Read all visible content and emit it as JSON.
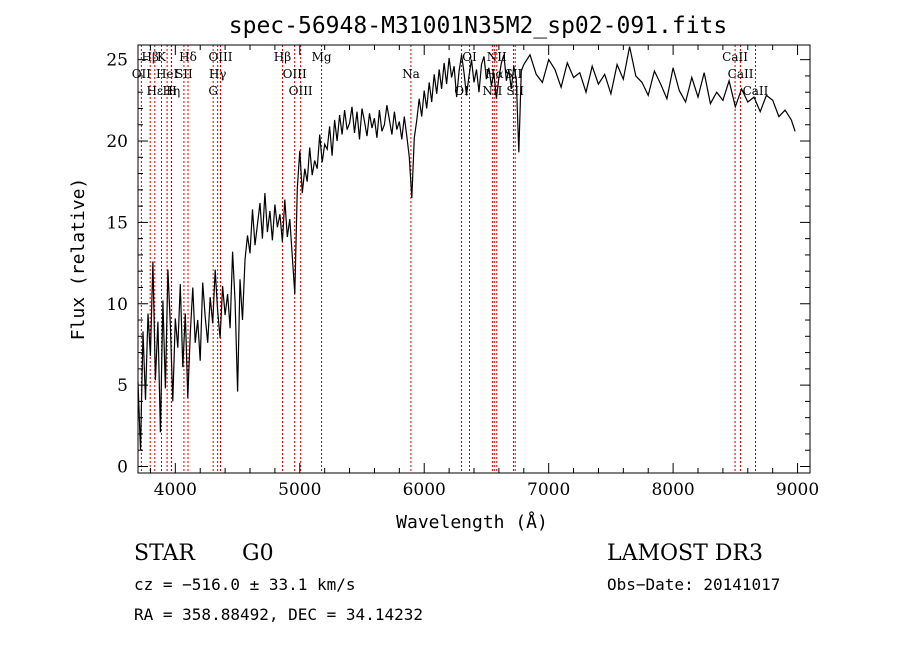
{
  "chart_data": {
    "type": "line",
    "title": "spec-56948-M31001N35M2_sp02-091.fits",
    "xlabel": "Wavelength (Å)",
    "ylabel": "Flux (relative)",
    "xlim": [
      3700,
      9100
    ],
    "ylim": [
      -0.4,
      25.9
    ],
    "xticks": [
      4000,
      5000,
      6000,
      7000,
      8000,
      9000
    ],
    "yticks": [
      0,
      5,
      10,
      15,
      20,
      25
    ],
    "grid": false,
    "legend": "none",
    "series": [
      {
        "color": "#000000",
        "x": [
          3700,
          3720,
          3740,
          3760,
          3780,
          3800,
          3820,
          3840,
          3860,
          3880,
          3900,
          3920,
          3940,
          3960,
          3980,
          4000,
          4020,
          4040,
          4060,
          4080,
          4100,
          4120,
          4140,
          4160,
          4180,
          4200,
          4220,
          4240,
          4260,
          4280,
          4300,
          4320,
          4340,
          4360,
          4380,
          4400,
          4420,
          4440,
          4460,
          4480,
          4500,
          4520,
          4540,
          4560,
          4580,
          4600,
          4620,
          4640,
          4660,
          4680,
          4700,
          4720,
          4740,
          4760,
          4780,
          4800,
          4820,
          4840,
          4860,
          4880,
          4900,
          4920,
          4940,
          4960,
          4980,
          5000,
          5020,
          5040,
          5060,
          5080,
          5100,
          5120,
          5140,
          5160,
          5180,
          5200,
          5220,
          5240,
          5260,
          5280,
          5300,
          5320,
          5340,
          5360,
          5380,
          5400,
          5420,
          5440,
          5460,
          5480,
          5500,
          5520,
          5540,
          5560,
          5580,
          5600,
          5620,
          5640,
          5660,
          5680,
          5700,
          5720,
          5740,
          5760,
          5780,
          5800,
          5820,
          5840,
          5860,
          5880,
          5900,
          5920,
          5940,
          5960,
          5980,
          6000,
          6020,
          6040,
          6060,
          6080,
          6100,
          6120,
          6140,
          6160,
          6180,
          6200,
          6220,
          6240,
          6260,
          6280,
          6300,
          6320,
          6340,
          6360,
          6380,
          6400,
          6420,
          6440,
          6460,
          6480,
          6500,
          6520,
          6540,
          6560,
          6580,
          6600,
          6620,
          6640,
          6660,
          6680,
          6700,
          6720,
          6740,
          6760,
          6780,
          6800,
          6850,
          6900,
          6950,
          7000,
          7050,
          7100,
          7150,
          7200,
          7250,
          7300,
          7350,
          7400,
          7450,
          7500,
          7550,
          7600,
          7650,
          7700,
          7750,
          7800,
          7850,
          7900,
          7950,
          8000,
          8050,
          8100,
          8150,
          8200,
          8250,
          8300,
          8350,
          8400,
          8450,
          8500,
          8550,
          8600,
          8650,
          8700,
          8750,
          8800,
          8850,
          8900,
          8950,
          8980
        ],
        "y": [
          5.2,
          1.0,
          8.3,
          4.1,
          9.4,
          6.8,
          12.6,
          5.3,
          8.9,
          2.1,
          10.2,
          4.8,
          12.1,
          8.6,
          4.0,
          9.1,
          7.3,
          11.2,
          6.1,
          9.4,
          4.2,
          8.2,
          11.0,
          7.6,
          9.0,
          6.5,
          11.3,
          9.2,
          7.6,
          10.4,
          8.8,
          12.1,
          9.6,
          7.9,
          11.1,
          9.3,
          10.6,
          8.5,
          13.2,
          10.1,
          4.6,
          11.5,
          9.0,
          12.7,
          14.2,
          13.1,
          15.8,
          13.6,
          14.9,
          16.2,
          14.0,
          16.8,
          14.4,
          15.7,
          13.9,
          16.1,
          14.7,
          15.5,
          13.8,
          16.4,
          14.1,
          15.2,
          12.9,
          10.6,
          17.1,
          19.4,
          16.8,
          18.3,
          17.5,
          19.6,
          17.9,
          18.8,
          18.3,
          20.4,
          18.7,
          19.8,
          19.5,
          20.9,
          19.1,
          21.3,
          20.0,
          21.6,
          20.4,
          21.9,
          20.7,
          21.1,
          22.1,
          20.5,
          21.8,
          20.1,
          22.0,
          21.2,
          20.3,
          21.7,
          20.8,
          21.4,
          20.2,
          21.9,
          20.6,
          21.0,
          22.2,
          21.3,
          20.4,
          21.8,
          20.7,
          21.2,
          20.1,
          21.5,
          20.3,
          19.0,
          16.5,
          20.2,
          21.3,
          22.6,
          21.5,
          23.1,
          22.0,
          23.6,
          22.4,
          24.1,
          22.9,
          24.4,
          23.2,
          24.8,
          23.5,
          25.1,
          23.9,
          24.6,
          22.7,
          24.3,
          25.3,
          24.2,
          22.8,
          24.0,
          25.0,
          23.6,
          24.4,
          23.0,
          24.7,
          25.2,
          23.8,
          24.5,
          23.4,
          24.2,
          22.6,
          23.9,
          24.8,
          25.3,
          23.7,
          24.4,
          23.2,
          24.6,
          23.8,
          19.3,
          24.3,
          24.7,
          25.3,
          24.1,
          23.6,
          25.0,
          24.4,
          23.3,
          24.8,
          23.9,
          24.2,
          23.0,
          24.6,
          23.5,
          24.1,
          22.9,
          24.7,
          23.8,
          25.8,
          24.0,
          23.6,
          22.8,
          24.3,
          23.5,
          22.6,
          24.5,
          23.1,
          22.4,
          23.9,
          22.7,
          24.2,
          22.3,
          23.0,
          22.5,
          23.7,
          22.1,
          23.2,
          22.4,
          22.7,
          21.8,
          22.8,
          22.5,
          21.5,
          21.9,
          21.3,
          20.6
        ]
      }
    ],
    "lines": [
      {
        "label": "Hβ",
        "wave": 3798
      },
      {
        "label": "OII",
        "wave": 3727
      },
      {
        "label": "Hε",
        "wave": 3835
      },
      {
        "label": "K",
        "wave": 3889
      },
      {
        "label": "HeI",
        "wave": 3934
      },
      {
        "label": "Hη",
        "wave": 3968
      },
      {
        "label": "Hδ",
        "wave": 4102
      },
      {
        "label": "SII",
        "wave": 4069
      },
      {
        "label": "H",
        "wave": 3970
      },
      {
        "label": "OIII",
        "wave": 4363
      },
      {
        "label": "Hγ",
        "wave": 4340
      },
      {
        "label": "G",
        "wave": 4304
      },
      {
        "label": "Hβ",
        "wave": 4861
      },
      {
        "label": "OIII",
        "wave": 4959
      },
      {
        "label": "OIII",
        "wave": 5007
      },
      {
        "label": "Mg",
        "wave": 5175
      },
      {
        "label": "Na",
        "wave": 5893
      },
      {
        "label": "OI",
        "wave": 6300
      },
      {
        "label": "OI",
        "wave": 6364
      },
      {
        "label": "Hα",
        "wave": 6563
      },
      {
        "label": "NII",
        "wave": 6548
      },
      {
        "label": "NII",
        "wave": 6583
      },
      {
        "label": "SII",
        "wave": 6717
      },
      {
        "label": "SII",
        "wave": 6731
      },
      {
        "label": "CaII",
        "wave": 8498
      },
      {
        "label": "CaII",
        "wave": 8542
      },
      {
        "label": "CaII",
        "wave": 8662
      }
    ],
    "line_color": "#cc0000"
  },
  "info": {
    "class": "STAR",
    "subclass": "G0",
    "survey": "LAMOST DR3",
    "cz": "cz = −516.0 ± 33.1 km/s",
    "obs_date": "Obs−Date: 20141017",
    "coords": "RA = 358.88492, DEC =  34.14232"
  }
}
